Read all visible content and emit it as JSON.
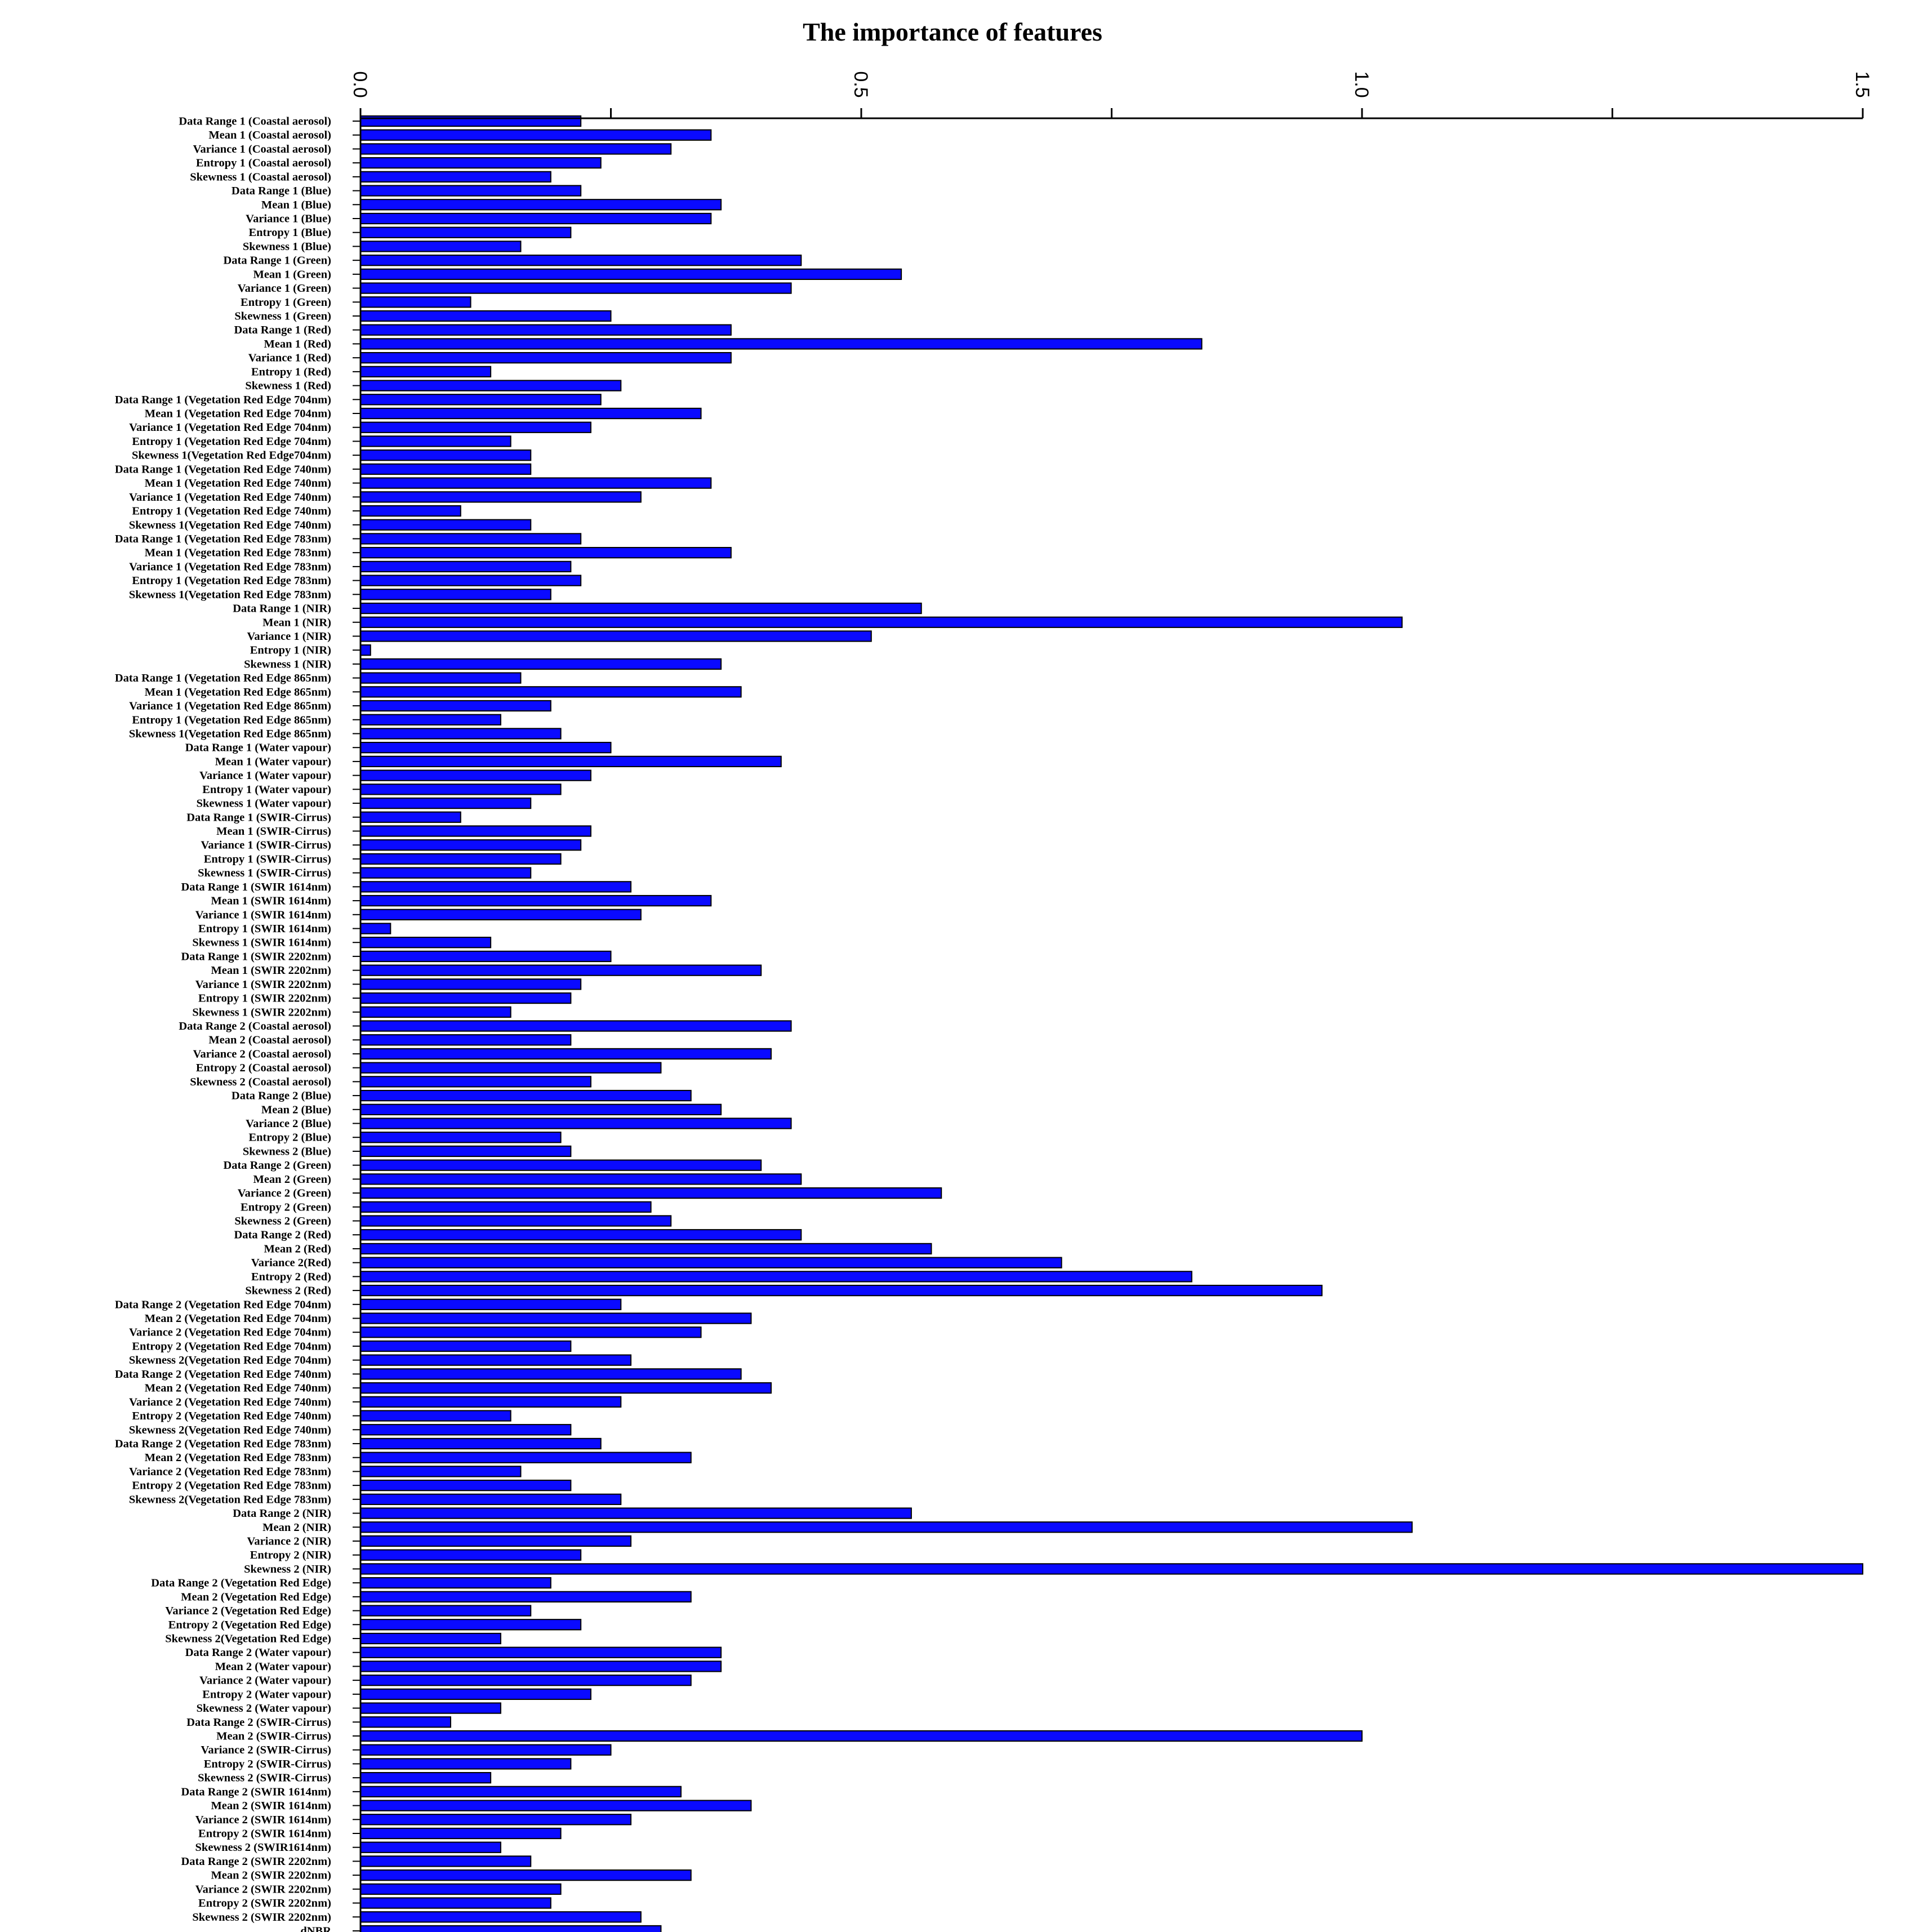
{
  "chart_data": {
    "type": "bar",
    "orientation": "horizontal",
    "title": "The importance of features",
    "xlim": [
      0,
      1.5
    ],
    "xticks": [
      "0.0",
      "0.5",
      "1.0",
      "1.5"
    ],
    "grid": false,
    "bar_color": "#0a0aff",
    "categories": [
      "Data Range 1 (Coastal aerosol)",
      "Mean 1  (Coastal aerosol)",
      "Variance 1  (Coastal aerosol)",
      "Entropy 1 (Coastal aerosol)",
      "Skewness 1 (Coastal aerosol)",
      "Data Range 1 (Blue)",
      "Mean 1 (Blue)",
      "Variance 1 (Blue)",
      "Entropy 1 (Blue)",
      "Skewness 1 (Blue)",
      "Data Range 1 (Green)",
      "Mean 1  (Green)",
      "Variance 1  (Green)",
      "Entropy 1  (Green)",
      "Skewness 1  (Green)",
      "Data Range 1 (Red)",
      "Mean 1 (Red)",
      "Variance 1 (Red)",
      "Entropy 1 (Red)",
      "Skewness 1 (Red)",
      "Data Range 1 (Vegetation Red Edge 704nm)",
      "Mean 1 (Vegetation Red Edge 704nm)",
      "Variance 1 (Vegetation Red Edge 704nm)",
      "Entropy 1 (Vegetation Red Edge 704nm)",
      "Skewness 1(Vegetation Red Edge704nm)",
      "Data Range 1 (Vegetation Red Edge 740nm)",
      "Mean 1 (Vegetation Red Edge 740nm)",
      "Variance 1 (Vegetation Red Edge 740nm)",
      "Entropy 1 (Vegetation Red Edge 740nm)",
      "Skewness 1(Vegetation Red Edge 740nm)",
      "Data Range 1 (Vegetation Red Edge 783nm)",
      "Mean 1 (Vegetation Red Edge 783nm)",
      "Variance 1 (Vegetation Red Edge 783nm)",
      "Entropy 1 (Vegetation Red Edge 783nm)",
      "Skewness 1(Vegetation Red Edge 783nm)",
      "Data Range 1 (NIR)",
      "Mean 1 (NIR)",
      "Variance 1 (NIR)",
      "Entropy 1 (NIR)",
      "Skewness 1 (NIR)",
      "Data Range 1 (Vegetation Red Edge 865nm)",
      "Mean 1 (Vegetation Red Edge 865nm)",
      "Variance 1 (Vegetation Red Edge 865nm)",
      "Entropy 1 (Vegetation Red Edge 865nm)",
      "Skewness 1(Vegetation Red Edge 865nm)",
      "Data Range 1 (Water vapour)",
      "Mean 1  (Water vapour)",
      "Variance 1 (Water vapour)",
      "Entropy 1 (Water vapour)",
      "Skewness 1 (Water vapour)",
      "Data Range 1 (SWIR-Cirrus)",
      "Mean 1 (SWIR-Cirrus)",
      "Variance 1 (SWIR-Cirrus)",
      "Entropy 1 (SWIR-Cirrus)",
      "Skewness 1 (SWIR-Cirrus)",
      "Data Range 1 (SWIR 1614nm)",
      "Mean 1 (SWIR 1614nm)",
      "Variance 1 (SWIR 1614nm)",
      "Entropy 1 (SWIR 1614nm)",
      "Skewness 1 (SWIR 1614nm)",
      "Data Range 1 (SWIR 2202nm)",
      "Mean 1 (SWIR 2202nm)",
      "Variance 1 (SWIR 2202nm)",
      "Entropy 1 (SWIR 2202nm)",
      "Skewness 1 (SWIR 2202nm)",
      "Data Range 2 (Coastal aerosol)",
      "Mean 2  (Coastal aerosol)",
      "Variance 2  (Coastal aerosol)",
      "Entropy 2 (Coastal aerosol)",
      "Skewness 2 (Coastal aerosol)",
      "Data Range 2 (Blue)",
      "Mean 2 (Blue)",
      "Variance 2 (Blue)",
      "Entropy 2 (Blue)",
      "Skewness 2 (Blue)",
      "Data Range 2 (Green)",
      "Mean 2  (Green)",
      "Variance 2  (Green)",
      "Entropy 2  (Green)",
      "Skewness 2  (Green)",
      "Data Range 2 (Red)",
      "Mean 2 (Red)",
      "Variance 2(Red)",
      "Entropy 2 (Red)",
      "Skewness 2  (Red)",
      "Data Range 2 (Vegetation Red Edge 704nm)",
      "Mean 2 (Vegetation Red Edge 704nm)",
      "Variance 2 (Vegetation Red Edge 704nm)",
      "Entropy 2 (Vegetation Red Edge 704nm)",
      "Skewness 2(Vegetation Red Edge 704nm)",
      "Data Range 2 (Vegetation Red Edge 740nm)",
      "Mean 2 (Vegetation Red Edge 740nm)",
      "Variance 2 (Vegetation Red Edge 740nm)",
      "Entropy 2 (Vegetation Red Edge 740nm)",
      "Skewness 2(Vegetation Red Edge 740nm)",
      "Data Range 2 (Vegetation Red Edge 783nm)",
      "Mean 2 (Vegetation Red Edge 783nm)",
      "Variance 2 (Vegetation Red Edge 783nm)",
      "Entropy 2 (Vegetation Red Edge 783nm)",
      "Skewness 2(Vegetation Red Edge 783nm)",
      "Data Range 2 (NIR)",
      "Mean 2 (NIR)",
      "Variance 2 (NIR)",
      "Entropy 2 (NIR)",
      "Skewness 2  (NIR)",
      "Data Range 2 (Vegetation Red Edge)",
      "Mean 2 (Vegetation Red Edge)",
      "Variance 2 (Vegetation Red Edge)",
      "Entropy 2 (Vegetation Red Edge)",
      "Skewness 2(Vegetation Red Edge)",
      "Data Range 2 (Water vapour)",
      "Mean 2  (Water vapour)",
      "Variance 2 (Water vapour)",
      "Entropy 2 (Water vapour)",
      "Skewness 2 (Water vapour)",
      "Data Range 2 (SWIR-Cirrus)",
      "Mean 2 (SWIR-Cirrus)",
      "Variance 2 (SWIR-Cirrus)",
      "Entropy 2 (SWIR-Cirrus)",
      "Skewness 2 (SWIR-Cirrus)",
      "Data Range 2 (SWIR 1614nm)",
      "Mean 2 (SWIR 1614nm)",
      "Variance 2 (SWIR 1614nm)",
      "Entropy 2 (SWIR 1614nm)",
      "Skewness 2 (SWIR1614nm)",
      "Data Range 2 (SWIR 2202nm)",
      "Mean 2 (SWIR 2202nm)",
      "Variance 2 (SWIR 2202nm)",
      "Entropy 2 (SWIR 2202nm)",
      "Skewness 2 (SWIR 2202nm)",
      "dNBR"
    ],
    "values": [
      0.22,
      0.35,
      0.31,
      0.24,
      0.19,
      0.22,
      0.36,
      0.35,
      0.21,
      0.16,
      0.44,
      0.54,
      0.43,
      0.11,
      0.25,
      0.37,
      0.84,
      0.37,
      0.13,
      0.26,
      0.24,
      0.34,
      0.23,
      0.15,
      0.17,
      0.17,
      0.35,
      0.28,
      0.1,
      0.17,
      0.22,
      0.37,
      0.21,
      0.22,
      0.19,
      0.56,
      1.04,
      0.51,
      0.01,
      0.36,
      0.16,
      0.38,
      0.19,
      0.14,
      0.2,
      0.25,
      0.42,
      0.23,
      0.2,
      0.17,
      0.1,
      0.23,
      0.22,
      0.2,
      0.17,
      0.27,
      0.35,
      0.28,
      0.03,
      0.13,
      0.25,
      0.4,
      0.22,
      0.21,
      0.15,
      0.43,
      0.21,
      0.41,
      0.3,
      0.23,
      0.33,
      0.36,
      0.43,
      0.2,
      0.21,
      0.4,
      0.44,
      0.58,
      0.29,
      0.31,
      0.44,
      0.57,
      0.7,
      0.83,
      0.96,
      0.26,
      0.39,
      0.34,
      0.21,
      0.27,
      0.38,
      0.41,
      0.26,
      0.15,
      0.21,
      0.24,
      0.33,
      0.16,
      0.21,
      0.26,
      0.55,
      1.05,
      0.27,
      0.22,
      1.5,
      0.19,
      0.33,
      0.17,
      0.22,
      0.14,
      0.36,
      0.36,
      0.33,
      0.23,
      0.14,
      0.09,
      1.0,
      0.25,
      0.21,
      0.13,
      0.32,
      0.39,
      0.27,
      0.2,
      0.14,
      0.17,
      0.33,
      0.2,
      0.19,
      0.28,
      0.3
    ]
  }
}
